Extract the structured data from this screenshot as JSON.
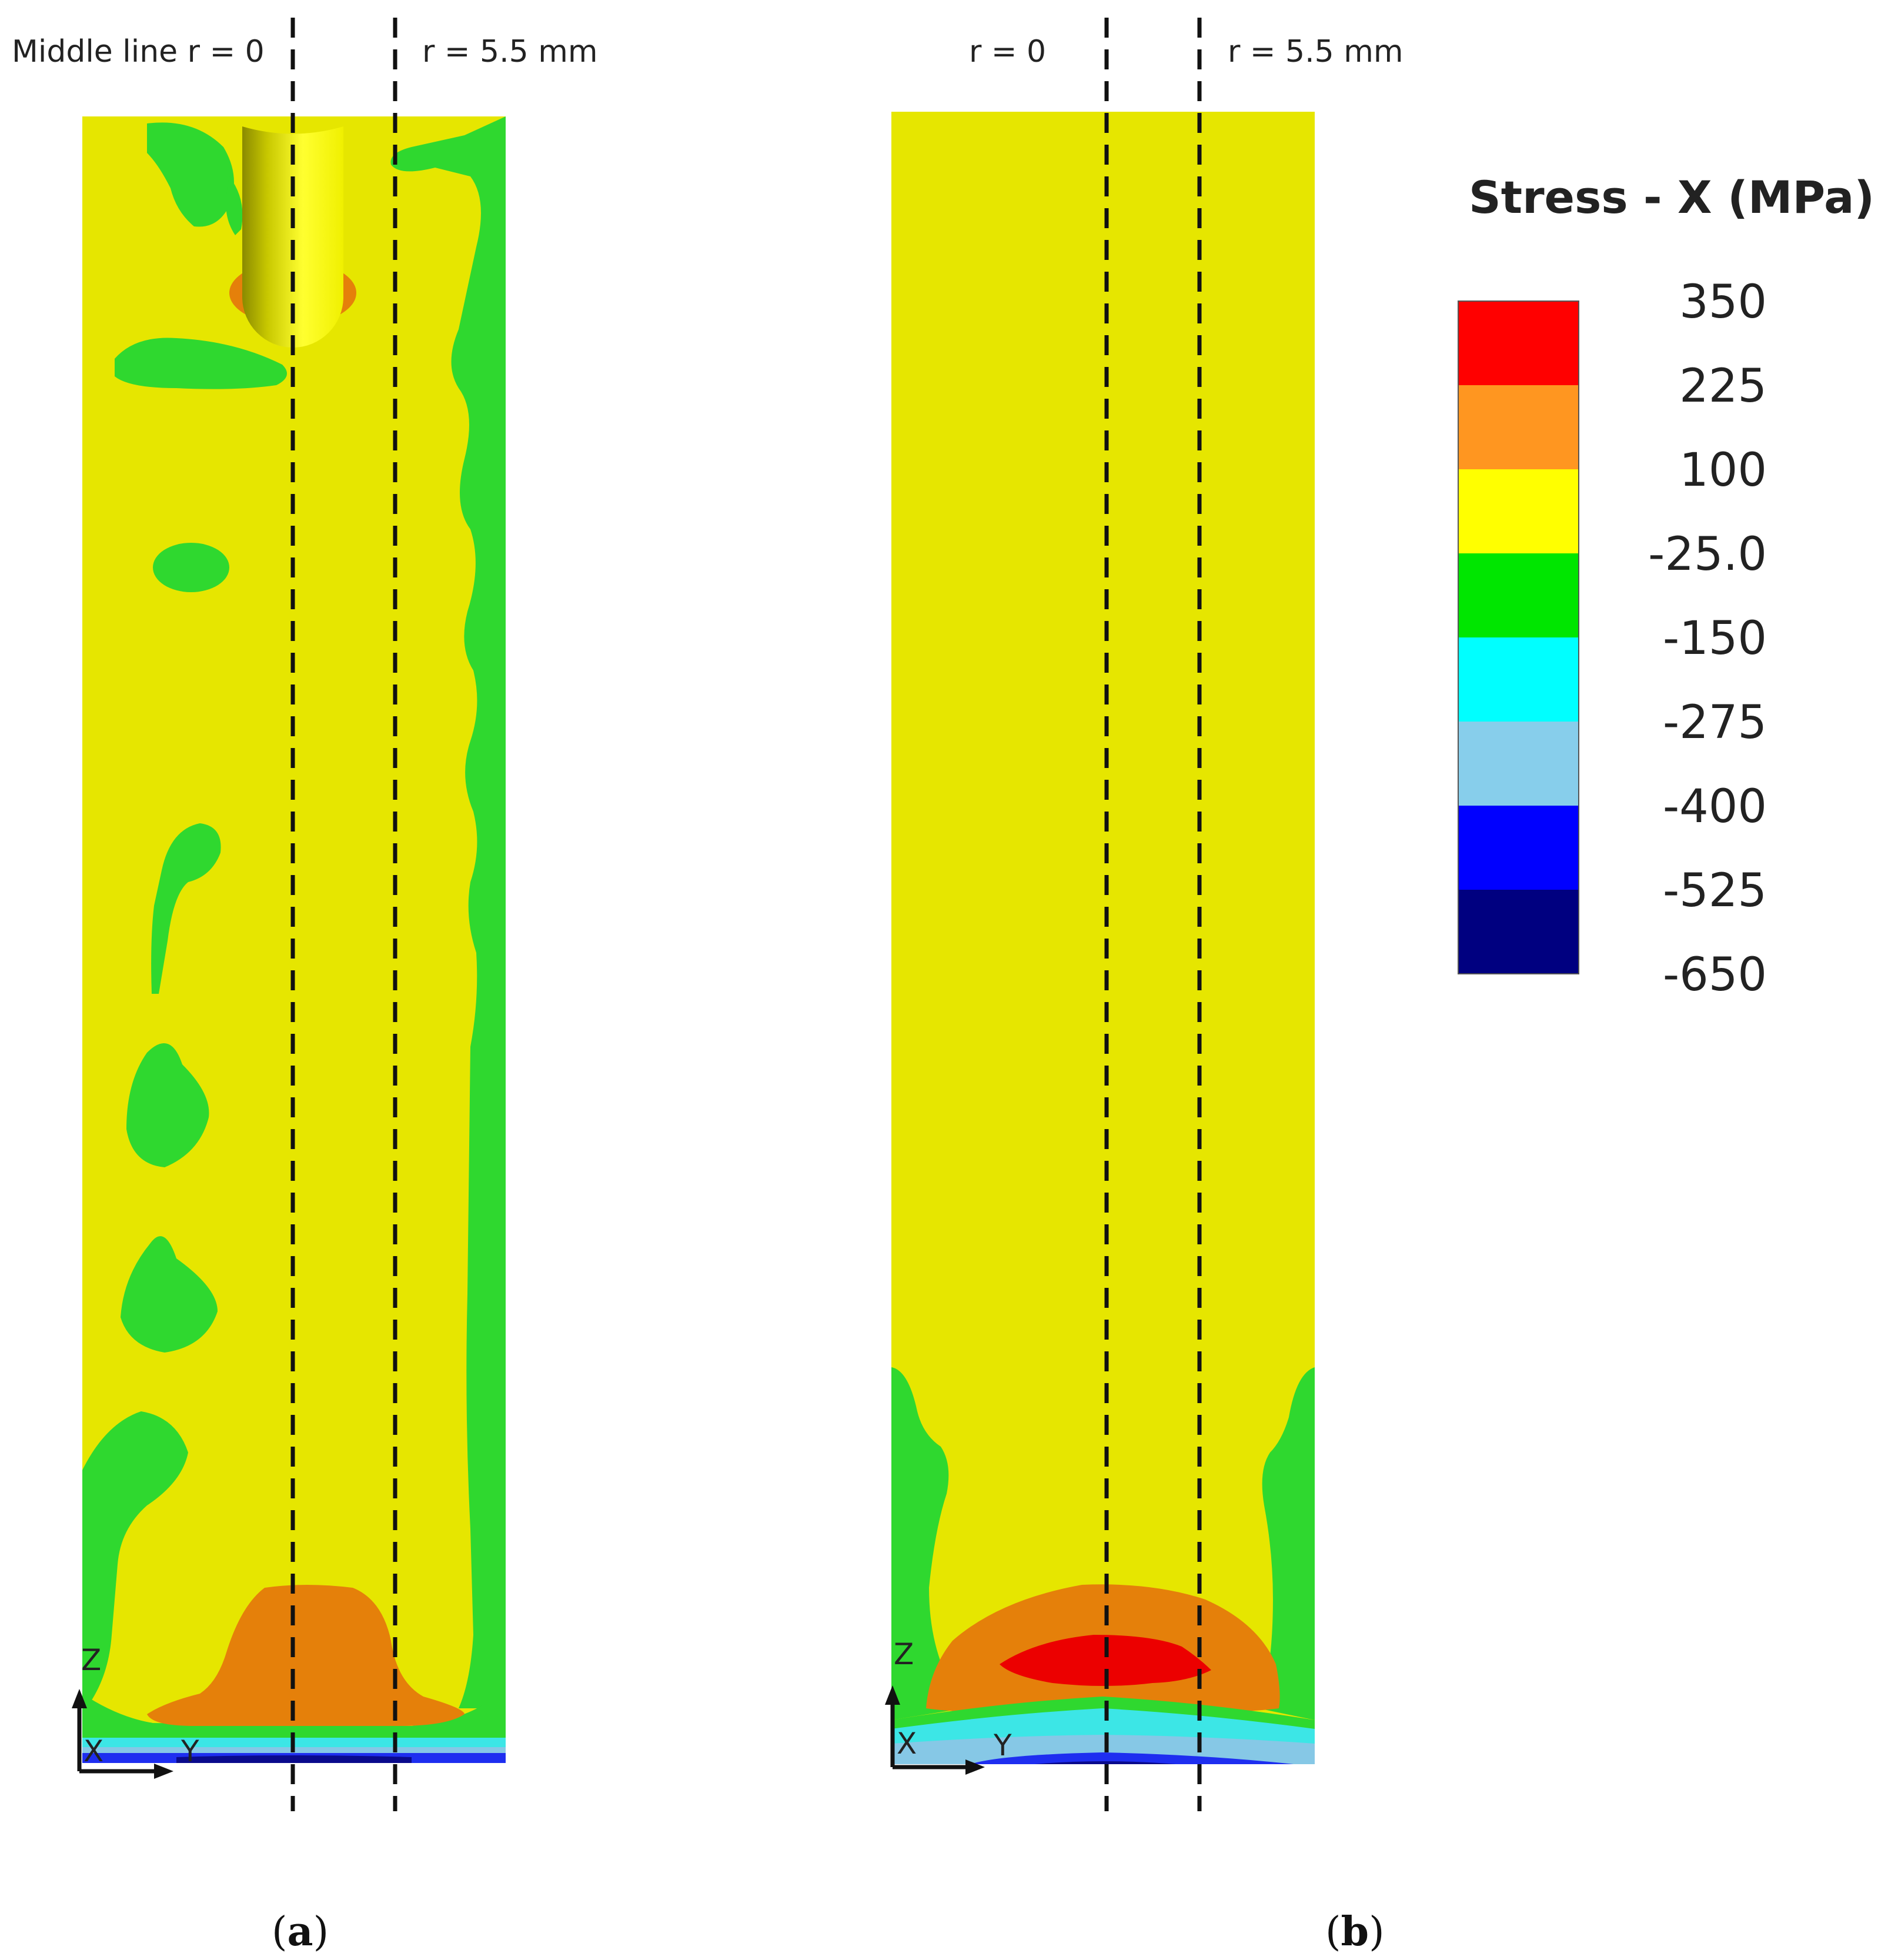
{
  "panel_a": {
    "label_middle": "Middle line r = 0",
    "label_r": "r = 5.5 mm",
    "axis_z": "Z",
    "axis_x": "X",
    "axis_y": "Y",
    "caption_open": "(",
    "caption_letter": "a",
    "caption_close": ")"
  },
  "panel_b": {
    "label_middle": "r = 0",
    "label_r": "r = 5.5 mm",
    "axis_z": "Z",
    "axis_x": "X",
    "axis_y": "Y",
    "caption_open": "(",
    "caption_letter": "b",
    "caption_close": ")"
  },
  "legend": {
    "title": "Stress - X (MPa)",
    "values": [
      "350",
      "225",
      "100",
      "-25.0",
      "-150",
      "-275",
      "-400",
      "-525",
      "-650"
    ],
    "colors": [
      "#ff0000",
      "#ff9620",
      "#ffff00",
      "#00e600",
      "#00ffff",
      "#87ceeb",
      "#0000ff",
      "#000080"
    ]
  },
  "colors": {
    "yellow": "#e6e600",
    "green": "#2fd82f",
    "orange": "#e5800a",
    "red": "#ec0000",
    "cyan": "#3ce6e6",
    "lightblue": "#86c8e6",
    "blue": "#1e2ef0",
    "navy": "#0a0a8c"
  }
}
